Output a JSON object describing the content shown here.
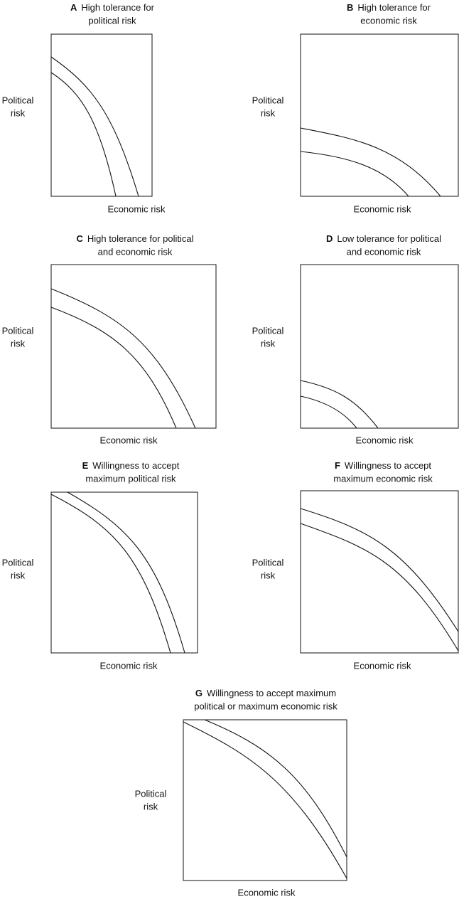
{
  "panels": [
    {
      "letter": "A",
      "title": [
        "High tolerance for",
        "political risk"
      ],
      "y_label": [
        "Political",
        "risk"
      ],
      "x_label": "Economic risk"
    },
    {
      "letter": "B",
      "title": [
        "High tolerance for",
        "economic risk"
      ],
      "y_label": [
        "Political",
        "risk"
      ],
      "x_label": "Economic risk"
    },
    {
      "letter": "C",
      "title": [
        "High tolerance for political",
        "and economic risk"
      ],
      "y_label": [
        "Political",
        "risk"
      ],
      "x_label": "Economic risk"
    },
    {
      "letter": "D",
      "title": [
        "Low tolerance for political",
        "and economic risk"
      ],
      "y_label": [
        "Political",
        "risk"
      ],
      "x_label": "Economic risk"
    },
    {
      "letter": "E",
      "title": [
        "Willingness to accept",
        "maximum political risk"
      ],
      "y_label": [
        "Political",
        "risk"
      ],
      "x_label": "Economic risk"
    },
    {
      "letter": "F",
      "title": [
        "Willingness to accept",
        "maximum economic risk"
      ],
      "y_label": [
        "Political",
        "risk"
      ],
      "x_label": "Economic risk"
    },
    {
      "letter": "G",
      "title": [
        "Willingness to accept maximum",
        "political or maximum economic risk"
      ],
      "y_label": [
        "Political",
        "risk"
      ],
      "x_label": "Economic risk"
    }
  ]
}
